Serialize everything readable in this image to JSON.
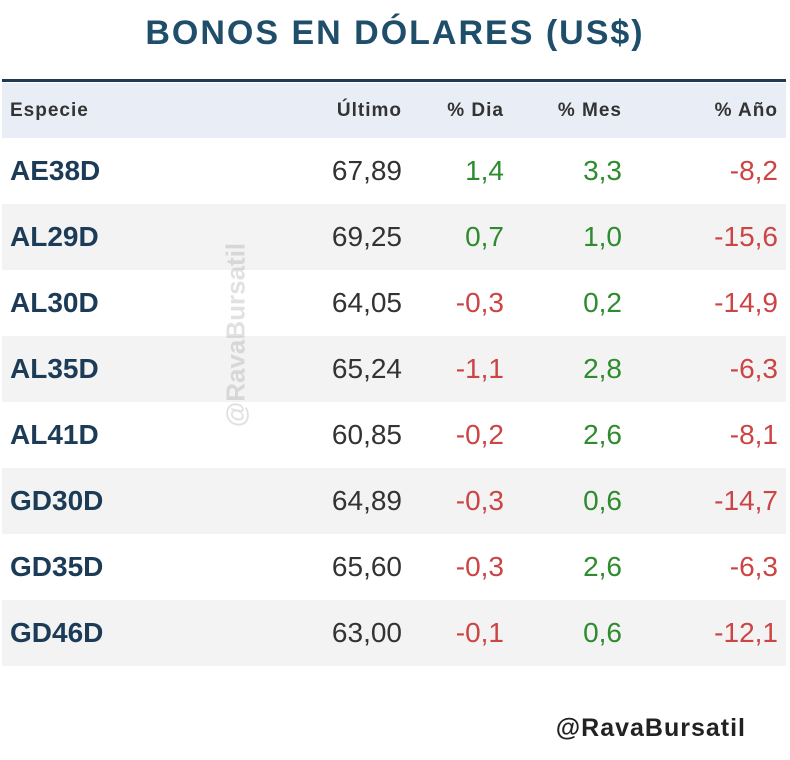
{
  "title": "BONOS EN DÓLARES (US$)",
  "columns": [
    "Especie",
    "Último",
    "% Dia",
    "% Mes",
    "% Año"
  ],
  "rows": [
    {
      "especie": "AE38D",
      "ultimo": "67,89",
      "dia": "1,4",
      "mes": "3,3",
      "anio": "-8,2"
    },
    {
      "especie": "AL29D",
      "ultimo": "69,25",
      "dia": "0,7",
      "mes": "1,0",
      "anio": "-15,6"
    },
    {
      "especie": "AL30D",
      "ultimo": "64,05",
      "dia": "-0,3",
      "mes": "0,2",
      "anio": "-14,9"
    },
    {
      "especie": "AL35D",
      "ultimo": "65,24",
      "dia": "-1,1",
      "mes": "2,8",
      "anio": "-6,3"
    },
    {
      "especie": "AL41D",
      "ultimo": "60,85",
      "dia": "-0,2",
      "mes": "2,6",
      "anio": "-8,1"
    },
    {
      "especie": "GD30D",
      "ultimo": "64,89",
      "dia": "-0,3",
      "mes": "0,6",
      "anio": "-14,7"
    },
    {
      "especie": "GD35D",
      "ultimo": "65,60",
      "dia": "-0,3",
      "mes": "2,6",
      "anio": "-6,3"
    },
    {
      "especie": "GD46D",
      "ultimo": "63,00",
      "dia": "-0,1",
      "mes": "0,6",
      "anio": "-12,1"
    }
  ],
  "watermark": "@RavaBursatil",
  "footer": "@RavaBursatil",
  "colors": {
    "title": "#1f4e6b",
    "positive": "#2e8b2e",
    "negative": "#cc4444",
    "header_bg": "#e9eef6",
    "alt_row_bg": "#f3f3f3"
  }
}
